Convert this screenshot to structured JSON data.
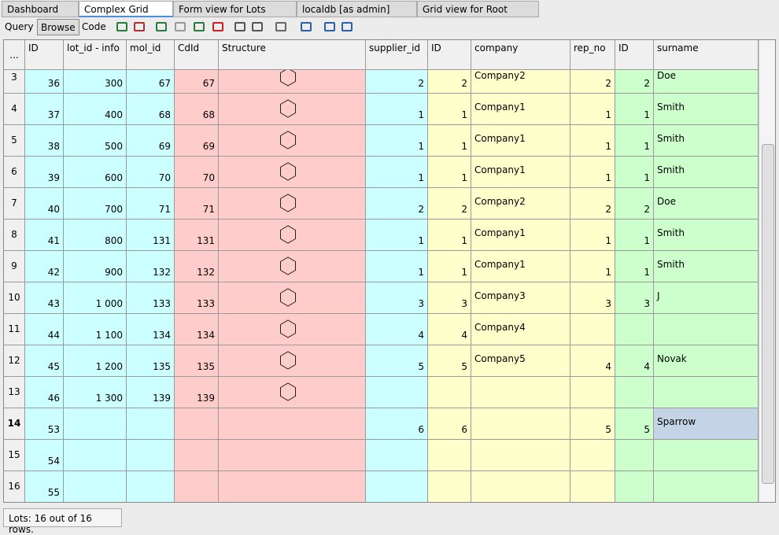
{
  "tabs": [
    "Dashboard",
    "Complex Grid",
    "Form view for Lots",
    "localdb [as admin]",
    "Grid view for Root"
  ],
  "toolbar": [
    "Query",
    "Browse",
    "Code"
  ],
  "corner": "...",
  "columns": [
    "ID",
    "lot_id - info",
    "mol_id",
    "CdId",
    "Structure",
    "supplier_id",
    "ID",
    "company",
    "rep_no",
    "ID",
    "surname"
  ],
  "rows": [
    {
      "n": 3,
      "cells": [
        36,
        300,
        67,
        67,
        2,
        2,
        "Company2",
        2,
        2,
        "Doe"
      ]
    },
    {
      "n": 4,
      "cells": [
        37,
        400,
        68,
        68,
        1,
        1,
        "Company1",
        1,
        1,
        "Smith"
      ]
    },
    {
      "n": 5,
      "cells": [
        38,
        500,
        69,
        69,
        1,
        1,
        "Company1",
        1,
        1,
        "Smith"
      ]
    },
    {
      "n": 6,
      "cells": [
        39,
        600,
        70,
        70,
        1,
        1,
        "Company1",
        1,
        1,
        "Smith"
      ]
    },
    {
      "n": 7,
      "cells": [
        40,
        700,
        71,
        71,
        2,
        2,
        "Company2",
        2,
        2,
        "Doe"
      ]
    },
    {
      "n": 8,
      "cells": [
        41,
        800,
        131,
        131,
        1,
        1,
        "Company1",
        1,
        1,
        "Smith"
      ]
    },
    {
      "n": 9,
      "cells": [
        42,
        900,
        132,
        132,
        1,
        1,
        "Company1",
        1,
        1,
        "Smith"
      ]
    },
    {
      "n": 10,
      "cells": [
        43,
        "1 000",
        133,
        133,
        3,
        3,
        "Company3",
        3,
        3,
        "J"
      ]
    },
    {
      "n": 11,
      "cells": [
        44,
        "1 100",
        134,
        134,
        4,
        4,
        "Company4",
        null,
        null,
        null
      ]
    },
    {
      "n": 12,
      "cells": [
        45,
        "1 200",
        135,
        135,
        5,
        5,
        "Company5",
        4,
        4,
        "Novak"
      ]
    },
    {
      "n": 13,
      "cells": [
        46,
        "1 300",
        139,
        139,
        null,
        null,
        null,
        null,
        null,
        null
      ]
    },
    {
      "n": 14,
      "cells": [
        53,
        null,
        null,
        null,
        6,
        6,
        null,
        5,
        5,
        "Sparrow"
      ]
    },
    {
      "n": 15,
      "cells": [
        54,
        null,
        null,
        null,
        null,
        null,
        null,
        null,
        null,
        null
      ]
    },
    {
      "n": 16,
      "cells": [
        55,
        null,
        null,
        null,
        null,
        null,
        null,
        null,
        null,
        null
      ]
    }
  ],
  "status": "Lots: 16 out of 16 rows."
}
